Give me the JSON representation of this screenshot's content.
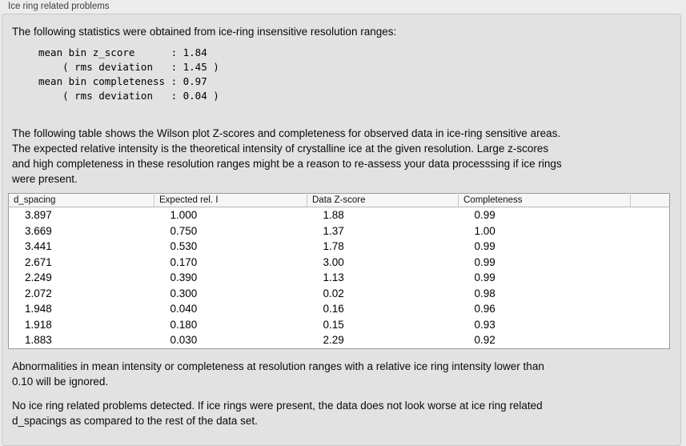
{
  "section": {
    "title": "Ice ring related problems",
    "intro": "The following statistics were obtained from ice-ring insensitive resolution ranges:",
    "stats_text": "mean bin z_score      : 1.84\n    ( rms deviation   : 1.45 )\nmean bin completeness : 0.97\n    ( rms deviation   : 0.04 )",
    "table_description": "The following table shows the Wilson plot Z-scores and completeness for observed data in ice-ring sensitive areas.\nThe expected relative intensity is the theoretical intensity of crystalline ice at the given resolution. Large z-scores\nand high completeness in these resolution ranges might be a reason to re-assess your data processsing if ice rings\nwere present.",
    "notes": [
      "Abnormalities in mean intensity or completeness at resolution ranges with a relative ice ring intensity lower than\n0.10 will be ignored.",
      "No ice ring related problems detected. If ice rings were present, the data does not look worse at ice ring related\nd_spacings as compared to the rest of the data set."
    ]
  },
  "table": {
    "columns": [
      "d_spacing",
      "Expected rel. I",
      "Data Z-score",
      "Completeness",
      ""
    ],
    "rows": [
      [
        "3.897",
        "1.000",
        "1.88",
        "0.99"
      ],
      [
        "3.669",
        "0.750",
        "1.37",
        "1.00"
      ],
      [
        "3.441",
        "0.530",
        "1.78",
        "0.99"
      ],
      [
        "2.671",
        "0.170",
        "3.00",
        "0.99"
      ],
      [
        "2.249",
        "0.390",
        "1.13",
        "0.99"
      ],
      [
        "2.072",
        "0.300",
        "0.02",
        "0.98"
      ],
      [
        "1.948",
        "0.040",
        "0.16",
        "0.96"
      ],
      [
        "1.918",
        "0.180",
        "0.15",
        "0.93"
      ],
      [
        "1.883",
        "0.030",
        "2.29",
        "0.92"
      ]
    ]
  }
}
